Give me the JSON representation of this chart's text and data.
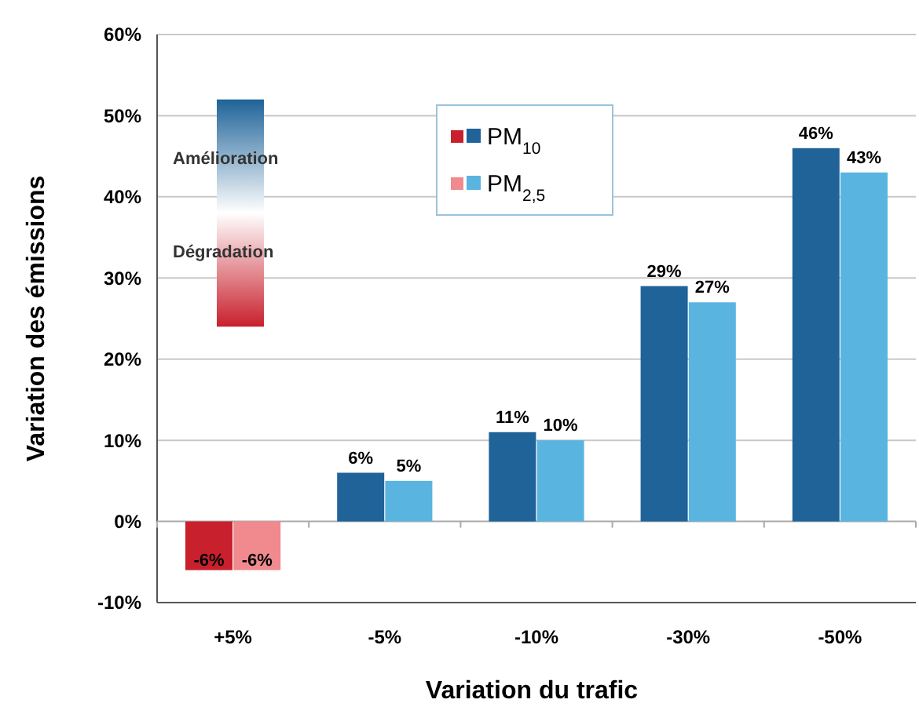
{
  "chart_data": {
    "type": "bar",
    "xlabel": "Variation du trafic",
    "ylabel": "Variation des émissions",
    "categories": [
      "+5%",
      "-5%",
      "-10%",
      "-30%",
      "-50%"
    ],
    "series": [
      {
        "name": "PM$_{10}$",
        "color": "#1f6399",
        "colors": [
          "#c8202c",
          "#1f6399",
          "#1f6399",
          "#1f6399",
          "#1f6399"
        ],
        "values": [
          -6,
          6,
          11,
          29,
          46
        ],
        "value_labels": [
          "-6%",
          "6%",
          "11%",
          "29%",
          "46%"
        ]
      },
      {
        "name": "PM$_{2,5}$",
        "color": "#5ab4e0",
        "colors": [
          "#f08a8e",
          "#5ab4e0",
          "#5ab4e0",
          "#5ab4e0",
          "#5ab4e0"
        ],
        "values": [
          -6,
          5,
          10,
          27,
          43
        ],
        "value_labels": [
          "-6%",
          "5%",
          "10%",
          "27%",
          "43%"
        ]
      }
    ],
    "ylim": [
      -10,
      60
    ],
    "yticks": [
      {
        "value": -10,
        "label": "-10%"
      },
      {
        "value": 0,
        "label": "0%"
      },
      {
        "value": 10,
        "label": "10%"
      },
      {
        "value": 20,
        "label": "20%"
      },
      {
        "value": 30,
        "label": "30%"
      },
      {
        "value": 40,
        "label": "40%"
      },
      {
        "value": 50,
        "label": "50%"
      },
      {
        "value": 60,
        "label": "60%"
      }
    ],
    "grid": "y",
    "legend": "top",
    "annotations": [
      "Amélioration",
      "Dégradation"
    ]
  }
}
